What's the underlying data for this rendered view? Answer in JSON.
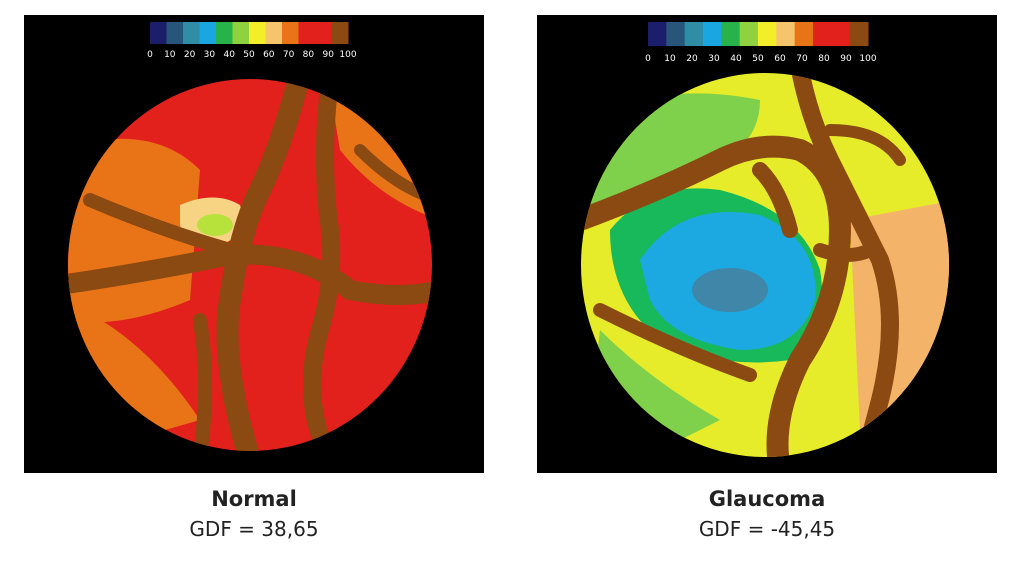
{
  "panels": [
    {
      "title": "Normal",
      "gdf": "GDF = 38,65",
      "colorbar_ticks": [
        "0",
        "10",
        "20",
        "30",
        "40",
        "50",
        "60",
        "70",
        "80",
        "90",
        "100"
      ]
    },
    {
      "title": "Glaucoma",
      "gdf": "GDF = -45,45",
      "colorbar_ticks": [
        "0",
        "10",
        "20",
        "30",
        "40",
        "50",
        "60",
        "70",
        "80",
        "90",
        "100"
      ]
    }
  ]
}
